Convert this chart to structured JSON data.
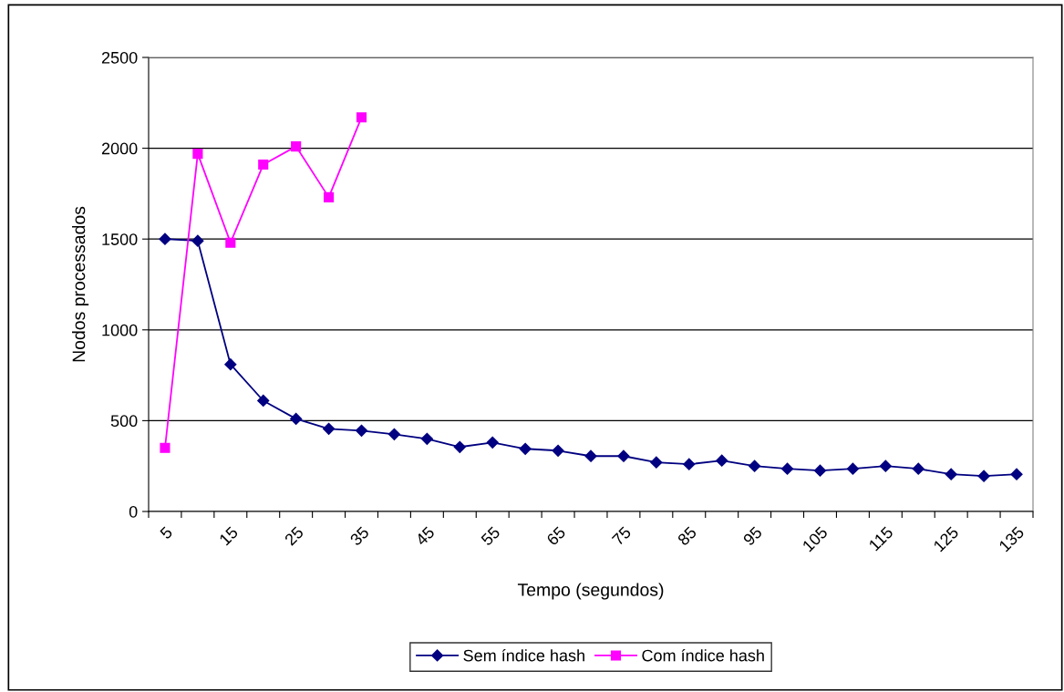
{
  "chart_data": {
    "type": "line",
    "xlabel": "Tempo (segundos)",
    "ylabel": "Nodos processados",
    "categories": [
      "5",
      null,
      "15",
      null,
      "25",
      null,
      "35",
      null,
      "45",
      null,
      "55",
      null,
      "65",
      null,
      "75",
      null,
      "85",
      null,
      "95",
      null,
      "105",
      null,
      "115",
      null,
      "125",
      null,
      "135"
    ],
    "series": [
      {
        "name": "Sem índice hash",
        "color": "#000080",
        "marker": "diamond",
        "values": [
          1500,
          1490,
          810,
          610,
          510,
          455,
          445,
          425,
          400,
          355,
          380,
          345,
          335,
          305,
          305,
          270,
          260,
          280,
          250,
          235,
          225,
          235,
          250,
          235,
          205,
          195,
          205
        ]
      },
      {
        "name": "Com índice hash",
        "color": "#ff00ff",
        "marker": "square",
        "values": [
          350,
          1970,
          1480,
          1910,
          2010,
          1730,
          2170,
          null,
          null,
          null,
          null,
          null,
          null,
          null,
          null,
          null,
          null,
          null,
          null,
          null,
          null,
          null,
          null,
          null,
          null,
          null,
          null
        ]
      }
    ],
    "ylim": [
      0,
      2500
    ],
    "yticks": [
      0,
      500,
      1000,
      1500,
      2000,
      2500
    ],
    "grid": "y",
    "legend": "bottom"
  }
}
